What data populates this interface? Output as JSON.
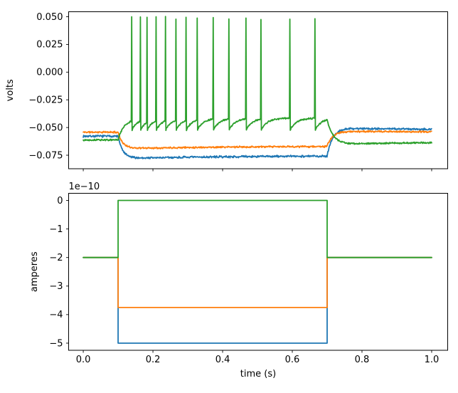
{
  "figure": {
    "background": "#ffffff",
    "axis_color": "#000000",
    "palette": [
      "#1f77b4",
      "#ff7f0e",
      "#2ca02c"
    ]
  },
  "chart_data": [
    {
      "type": "line",
      "id": "membrane-voltage",
      "title": "",
      "xlabel": "",
      "ylabel": "volts",
      "xlim": [
        -0.042,
        1.046
      ],
      "ylim": [
        -0.0872,
        0.0545
      ],
      "grid": false,
      "legend": null,
      "xticks": [
        0.0,
        0.2,
        0.4,
        0.6,
        0.8,
        1.0
      ],
      "xtick_labels": [],
      "yticks": [
        0.05,
        0.025,
        0.0,
        -0.025,
        -0.05,
        -0.075
      ],
      "ytick_labels": [
        "0.050",
        "0.025",
        "0.000",
        "−0.025",
        "−0.050",
        "−0.075"
      ],
      "step_window": [
        0.1,
        0.7
      ],
      "series": [
        {
          "name": "voltage-trace-blue",
          "color": "#1f77b4",
          "kind": "subthreshold",
          "rest_v": -0.0578,
          "step_min_v": -0.078,
          "step_end_v": -0.0753,
          "rebound_peak_v": -0.0504,
          "final_v": -0.0527,
          "tau_on": 0.013,
          "tau_sag": 0.35,
          "tau_off": 0.016,
          "tau_settle": 0.45,
          "noise_v": 0.0011,
          "seed": 7
        },
        {
          "name": "voltage-trace-orange",
          "color": "#ff7f0e",
          "kind": "subthreshold",
          "rest_v": -0.0542,
          "step_min_v": -0.069,
          "step_end_v": -0.0667,
          "rebound_peak_v": -0.0533,
          "final_v": -0.0545,
          "tau_on": 0.013,
          "tau_sag": 0.35,
          "tau_off": 0.016,
          "tau_settle": 0.45,
          "noise_v": 0.0009,
          "seed": 11
        },
        {
          "name": "voltage-trace-green",
          "color": "#2ca02c",
          "kind": "spiking",
          "rest_v": -0.0612,
          "depol_base_v": -0.0428,
          "interspike_v": -0.0415,
          "ahp_v": -0.0524,
          "spike_times": [
            0.139,
            0.164,
            0.183,
            0.209,
            0.236,
            0.266,
            0.295,
            0.327,
            0.373,
            0.418,
            0.467,
            0.51,
            0.593,
            0.665
          ],
          "spike_peaks": [
            0.05,
            0.0498,
            0.0495,
            0.05,
            0.0502,
            0.0478,
            0.0495,
            0.0488,
            0.0493,
            0.048,
            0.0488,
            0.0475,
            0.0478,
            0.0482
          ],
          "post_min_v": -0.0655,
          "final_v": -0.0628,
          "tau_on": 0.016,
          "tau_recover": 0.018,
          "tau_off": 0.018,
          "tau_settle": 0.25,
          "noise_v": 0.0008,
          "seed": 13
        }
      ]
    },
    {
      "type": "line",
      "id": "injected-current",
      "title": "",
      "xlabel": "time (s)",
      "ylabel": "amperes",
      "offset_text": "1e−10",
      "xlim": [
        -0.042,
        1.046
      ],
      "ylim": [
        -5.25e-10,
        2.5e-11
      ],
      "grid": false,
      "legend": null,
      "xticks": [
        0.0,
        0.2,
        0.4,
        0.6,
        0.8,
        1.0
      ],
      "xtick_labels": [
        "0.0",
        "0.2",
        "0.4",
        "0.6",
        "0.8",
        "1.0"
      ],
      "yticks": [
        0,
        -1e-10,
        -2e-10,
        -3e-10,
        -4e-10,
        -5e-10
      ],
      "ytick_labels": [
        "0",
        "−1",
        "−2",
        "−3",
        "−4",
        "−5"
      ],
      "baseline_amps": -2e-10,
      "step_window": [
        0.1,
        0.7
      ],
      "series": [
        {
          "name": "current-step-blue",
          "color": "#1f77b4",
          "step_amps": -5e-10
        },
        {
          "name": "current-step-orange",
          "color": "#ff7f0e",
          "step_amps": -3.75e-10
        },
        {
          "name": "current-step-green",
          "color": "#2ca02c",
          "step_amps": 0
        }
      ]
    }
  ]
}
